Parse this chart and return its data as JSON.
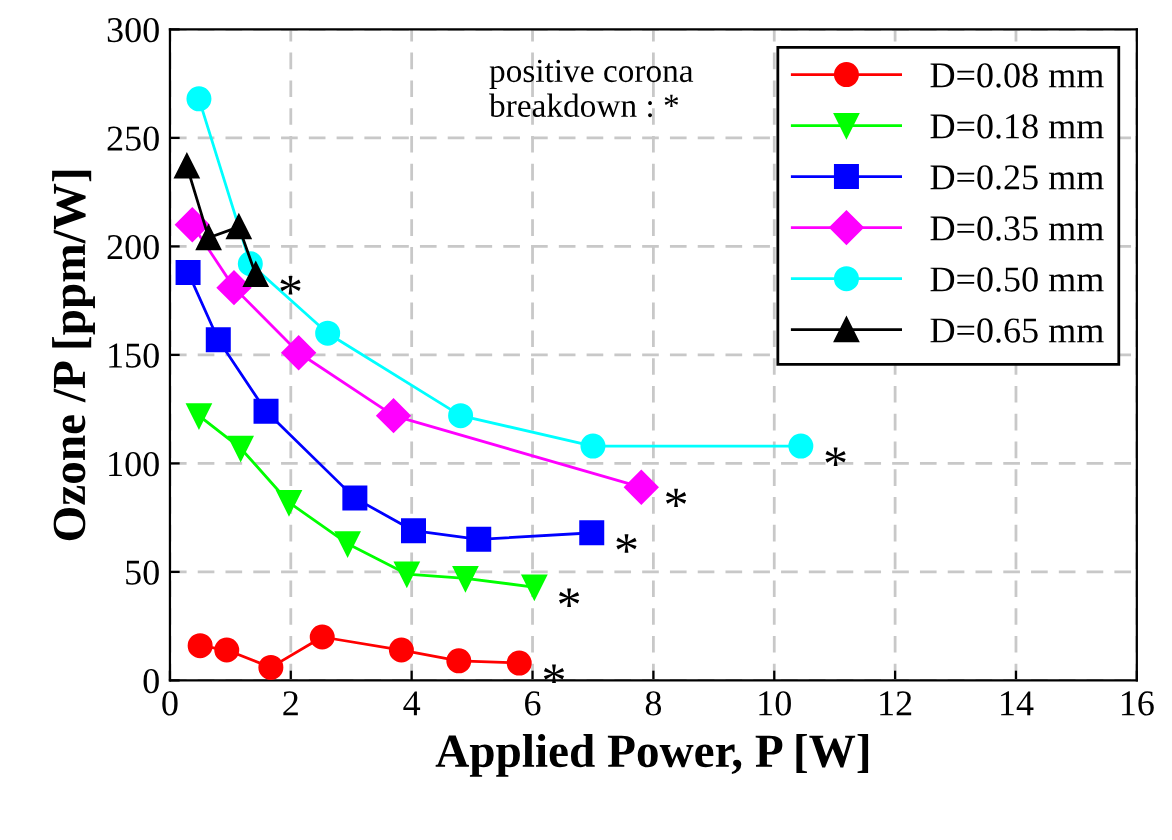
{
  "chart_data": {
    "type": "line",
    "xlabel": "Applied Power, P [W]",
    "ylabel": "Ozone /P [ppm/W]",
    "xlim": [
      0,
      16
    ],
    "xticks": [
      0,
      2,
      4,
      6,
      8,
      10,
      12,
      14,
      16
    ],
    "ylim": [
      0,
      300
    ],
    "yticks": [
      0,
      50,
      100,
      150,
      200,
      250,
      300
    ],
    "grid": true,
    "legend": "top right",
    "series": [
      {
        "name": "D=0.08 mm",
        "color": "#ff0000",
        "marker": "circle",
        "x": [
          0.5,
          0.94,
          1.67,
          2.52,
          3.83,
          4.78,
          5.78
        ],
        "values": [
          16,
          14,
          6,
          20,
          14,
          9,
          8
        ]
      },
      {
        "name": "D=0.18 mm",
        "color": "#00ff00",
        "marker": "triangle",
        "x": [
          0.48,
          1.17,
          1.97,
          2.94,
          3.92,
          4.89,
          6.03
        ],
        "values": [
          122,
          107,
          82,
          63,
          49,
          47,
          43
        ]
      },
      {
        "name": "D=0.25 mm",
        "color": "#0000ff",
        "marker": "square",
        "x": [
          0.3,
          0.8,
          1.59,
          3.06,
          4.03,
          5.11,
          6.98
        ],
        "values": [
          188,
          157,
          124,
          84,
          69,
          65,
          68
        ]
      },
      {
        "name": "D=0.35 mm",
        "color": "#ff00ff",
        "marker": "diamond",
        "x": [
          0.37,
          1.06,
          2.13,
          3.7,
          7.8
        ],
        "values": [
          210,
          181,
          151,
          122,
          89
        ]
      },
      {
        "name": "D=0.50 mm",
        "color": "#00ffff",
        "marker": "circle",
        "x": [
          0.48,
          1.33,
          2.61,
          4.81,
          7.0,
          10.44
        ],
        "values": [
          268,
          192,
          160,
          122,
          108,
          108
        ]
      },
      {
        "name": "D=0.65 mm",
        "color": "#000000",
        "marker": "triangle",
        "x": [
          0.28,
          0.64,
          1.14,
          1.42
        ],
        "values": [
          237,
          204,
          209,
          187
        ]
      }
    ],
    "annotations": [
      "positive corona\nbreakdown : *",
      {
        "text": "*",
        "x": 5.78,
        "y": 8
      },
      {
        "text": "*",
        "x": 6.03,
        "y": 43
      },
      {
        "text": "*",
        "x": 6.98,
        "y": 68
      },
      {
        "text": "*",
        "x": 7.8,
        "y": 89
      },
      {
        "text": "*",
        "x": 10.44,
        "y": 108
      },
      {
        "text": "*",
        "x": 1.42,
        "y": 187
      }
    ]
  }
}
